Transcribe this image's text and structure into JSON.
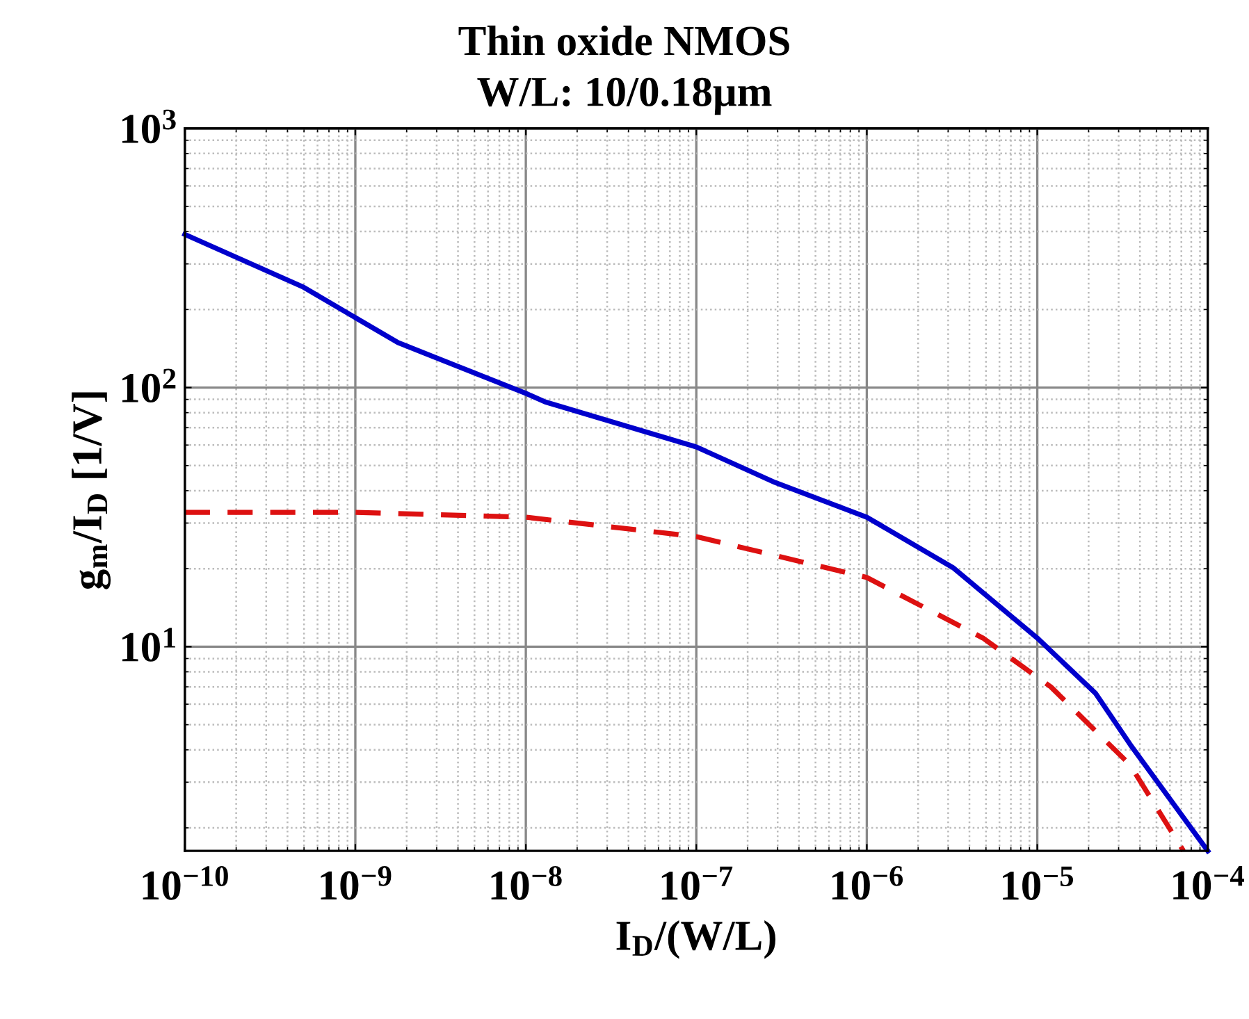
{
  "chart_data": {
    "type": "line",
    "title": "Thin oxide NMOS",
    "subtitle": "W/L: 10/0.18μm",
    "xlabel": "I$_{D}$/(W/L)",
    "ylabel": "g$_{m}$/I$_{D}$ [1/V]",
    "log": "xy",
    "grid": true,
    "xlim": [
      1e-10,
      0.0001
    ],
    "ylim": [
      1.63,
      1000
    ],
    "xticks": [
      {
        "value": 1e-10,
        "label": "10$^{−10}$"
      },
      {
        "value": 1e-09,
        "label": "10$^{−9}$"
      },
      {
        "value": 1e-08,
        "label": "10$^{−8}$"
      },
      {
        "value": 1e-07,
        "label": "10$^{−7}$"
      },
      {
        "value": 1e-06,
        "label": "10$^{−6}$"
      },
      {
        "value": 1e-05,
        "label": "10$^{−5}$"
      },
      {
        "value": 0.0001,
        "label": "10$^{−4}$"
      }
    ],
    "yticks": [
      {
        "value": 10,
        "label": "10$^{1}$"
      },
      {
        "value": 100,
        "label": "10$^{2}$"
      },
      {
        "value": 1000,
        "label": "10$^{3}$"
      }
    ],
    "series": [
      {
        "color": "#0000cc",
        "line_style": "solid",
        "x": [
          1e-10,
          4.9e-10,
          1.78e-09,
          1e-08,
          1.3e-08,
          1e-07,
          2.9e-07,
          1e-06,
          3.2e-06,
          1e-05,
          2.2e-05,
          3.5e-05,
          0.0001
        ],
        "values": [
          390,
          245,
          149,
          95,
          88,
          59,
          43,
          31.6,
          20.2,
          10.8,
          6.6,
          4.2,
          1.63
        ]
      },
      {
        "color": "#dd1111",
        "line_style": "dashed",
        "x": [
          1e-10,
          1e-09,
          1e-08,
          1e-07,
          1e-06,
          4.8e-06,
          1.2e-05,
          3.5e-05,
          7.2e-05
        ],
        "values": [
          33,
          33,
          31.6,
          26.6,
          18.5,
          10.8,
          7.0,
          3.5,
          1.63
        ]
      }
    ]
  }
}
